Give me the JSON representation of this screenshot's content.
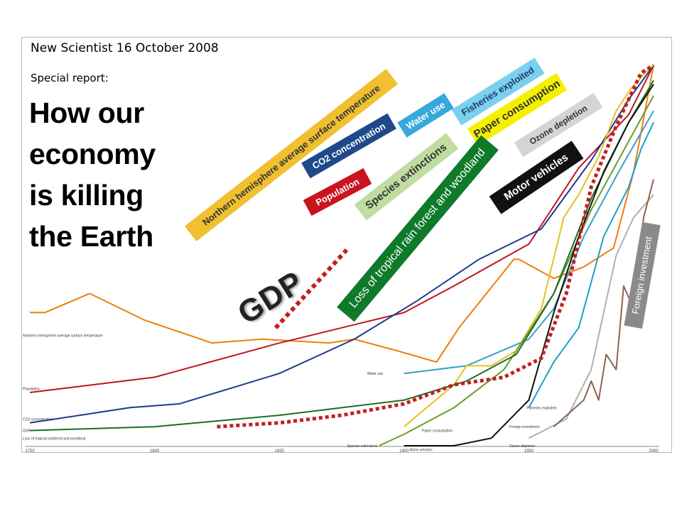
{
  "source_line": "New Scientist 16 October 2008",
  "special_line": "Special report:",
  "headline_lines": [
    "How our",
    "economy",
    "is killing",
    "the Earth"
  ],
  "gdp_label": "GDP",
  "chart_data": {
    "type": "line",
    "x_ticks": [
      "1750",
      "1800",
      "1850",
      "1900",
      "1950",
      "2000"
    ],
    "xlim": [
      1750,
      2000
    ],
    "series": [
      {
        "name": "Northern hemisphere average surface temperature",
        "color": "#f07d0a",
        "x": [
          1750,
          1756,
          1774,
          1796,
          1823,
          1843,
          1870,
          1880,
          1897,
          1913,
          1922,
          1944,
          1946,
          1960,
          1972,
          1984,
          1992,
          2000
        ],
        "y": [
          0.35,
          0.35,
          0.4,
          0.33,
          0.27,
          0.28,
          0.27,
          0.28,
          0.25,
          0.22,
          0.31,
          0.49,
          0.49,
          0.44,
          0.47,
          0.52,
          0.72,
          1.0
        ]
      },
      {
        "name": "Population",
        "color": "#c0141e",
        "x": [
          1750,
          1800,
          1850,
          1900,
          1920,
          1950,
          1970,
          1990,
          2000
        ],
        "y": [
          0.14,
          0.18,
          0.27,
          0.35,
          0.42,
          0.53,
          0.73,
          0.87,
          1.0
        ]
      },
      {
        "name": "CO2 concentration",
        "color": "#1e3a8c",
        "x": [
          1750,
          1760,
          1790,
          1810,
          1850,
          1880,
          1905,
          1930,
          1955,
          1975,
          1990,
          2000
        ],
        "y": [
          0.06,
          0.07,
          0.1,
          0.11,
          0.19,
          0.28,
          0.38,
          0.49,
          0.57,
          0.75,
          0.91,
          1.0
        ]
      },
      {
        "name": "Water use",
        "color": "#36a0c8",
        "x": [
          1900,
          1925,
          1950,
          1960,
          1972,
          1986,
          1993,
          2000
        ],
        "y": [
          0.19,
          0.21,
          0.28,
          0.36,
          0.55,
          0.72,
          0.8,
          0.88
        ]
      },
      {
        "name": "Fisheries exploited",
        "color": "#1ca0c8",
        "x": [
          1950,
          1960,
          1970,
          1980,
          1990,
          1995,
          2000
        ],
        "y": [
          0.1,
          0.22,
          0.31,
          0.55,
          0.68,
          0.78,
          0.85
        ]
      },
      {
        "name": "Paper consumption",
        "color": "#e8c020",
        "x": [
          1900,
          1920,
          1925,
          1935,
          1945,
          1955,
          1964,
          1970,
          1978,
          1985,
          1991,
          1998,
          2000
        ],
        "y": [
          0.05,
          0.16,
          0.21,
          0.21,
          0.25,
          0.36,
          0.6,
          0.66,
          0.76,
          0.88,
          0.94,
          0.99,
          1.0
        ]
      },
      {
        "name": "Species extinctions",
        "color": "#6a9c28",
        "x": [
          1890,
          1900,
          1920,
          1940,
          1960,
          1975,
          1990,
          2000
        ],
        "y": [
          0.0,
          0.03,
          0.1,
          0.2,
          0.4,
          0.62,
          0.8,
          0.92
        ]
      },
      {
        "name": "Loss of tropical rainforest and woodland",
        "color": "#1a6e22",
        "x": [
          1750,
          1800,
          1850,
          1900,
          1925,
          1945,
          1960,
          1975,
          1990,
          2000
        ],
        "y": [
          0.04,
          0.05,
          0.08,
          0.12,
          0.17,
          0.24,
          0.4,
          0.65,
          0.85,
          0.96
        ]
      },
      {
        "name": "Motor vehicles",
        "color": "#111111",
        "x": [
          1900,
          1920,
          1935,
          1950,
          1960,
          1970,
          1980,
          1990,
          2000
        ],
        "y": [
          0.0,
          0.0,
          0.02,
          0.12,
          0.35,
          0.55,
          0.72,
          0.85,
          0.95
        ]
      },
      {
        "name": "Ozone depletion",
        "color": "#b0b0b0",
        "x": [
          1950,
          1965,
          1975,
          1985,
          1992,
          2000
        ],
        "y": [
          0.02,
          0.07,
          0.2,
          0.5,
          0.6,
          0.66
        ]
      },
      {
        "name": "Foreign investment",
        "color": "#8c6450",
        "x": [
          1960,
          1972,
          1975,
          1978,
          1981,
          1985,
          1988,
          1992,
          1996,
          2000
        ],
        "y": [
          0.05,
          0.12,
          0.17,
          0.12,
          0.24,
          0.2,
          0.42,
          0.36,
          0.6,
          0.7
        ]
      },
      {
        "name": "GDP",
        "color": "#c41e1e",
        "dashed": true,
        "x": [
          1825,
          1850,
          1875,
          1900,
          1920,
          1940,
          1955,
          1965,
          1975,
          1985,
          1995,
          2000
        ],
        "y": [
          0.05,
          0.06,
          0.08,
          0.11,
          0.16,
          0.18,
          0.23,
          0.4,
          0.68,
          0.84,
          0.98,
          1.0
        ]
      }
    ],
    "inline_labels": [
      {
        "text": "Northern hemisphere average surface temperature",
        "x": 1750,
        "y": 0.29
      },
      {
        "text": "Population",
        "x": 1750,
        "y": 0.15
      },
      {
        "text": "CO2 concentration",
        "x": 1750,
        "y": 0.07
      },
      {
        "text": "GDP",
        "x": 1750,
        "y": 0.04
      },
      {
        "text": "Loss of tropical rainforest and woodland",
        "x": 1750,
        "y": 0.02
      },
      {
        "text": "Water use",
        "x": 1888,
        "y": 0.19
      },
      {
        "text": "Species extinctions",
        "x": 1880,
        "y": 0.0
      },
      {
        "text": "Motor vehicles",
        "x": 1905,
        "y": -0.01
      },
      {
        "text": "Paper consumption",
        "x": 1910,
        "y": 0.04
      },
      {
        "text": "Fisheries exploited",
        "x": 1952,
        "y": 0.1
      },
      {
        "text": "Foreign investment",
        "x": 1945,
        "y": 0.05
      },
      {
        "text": "Ozone depletion",
        "x": 1945,
        "y": 0.0
      }
    ],
    "legend_tags": [
      {
        "text": "Northern hemisphere average surface temperature",
        "bg": "#f0c030",
        "fg": "#333333"
      },
      {
        "text": "CO2 concentration",
        "bg": "#1e4a8c",
        "fg": "#ffffff"
      },
      {
        "text": "Water use",
        "bg": "#36a8dc",
        "fg": "#ffffff"
      },
      {
        "text": "Fisheries exploited",
        "bg": "#7ad0ee",
        "fg": "#1e3a6e"
      },
      {
        "text": "Paper consumption",
        "bg": "#f4f000",
        "fg": "#333333"
      },
      {
        "text": "Population",
        "bg": "#c8141e",
        "fg": "#ffffff"
      },
      {
        "text": "Species extinctions",
        "bg": "#c0dca0",
        "fg": "#333333"
      },
      {
        "text": "Ozone depletion",
        "bg": "#d4d4d4",
        "fg": "#333333"
      },
      {
        "text": "Loss of tropical rain forest and woodland",
        "bg": "#0e7a2a",
        "fg": "#ffffff"
      },
      {
        "text": "Motor vehicles",
        "bg": "#111111",
        "fg": "#ffffff"
      },
      {
        "text": "Foreign investment",
        "bg": "#8a8a8a",
        "fg": "#ffffff"
      }
    ]
  }
}
